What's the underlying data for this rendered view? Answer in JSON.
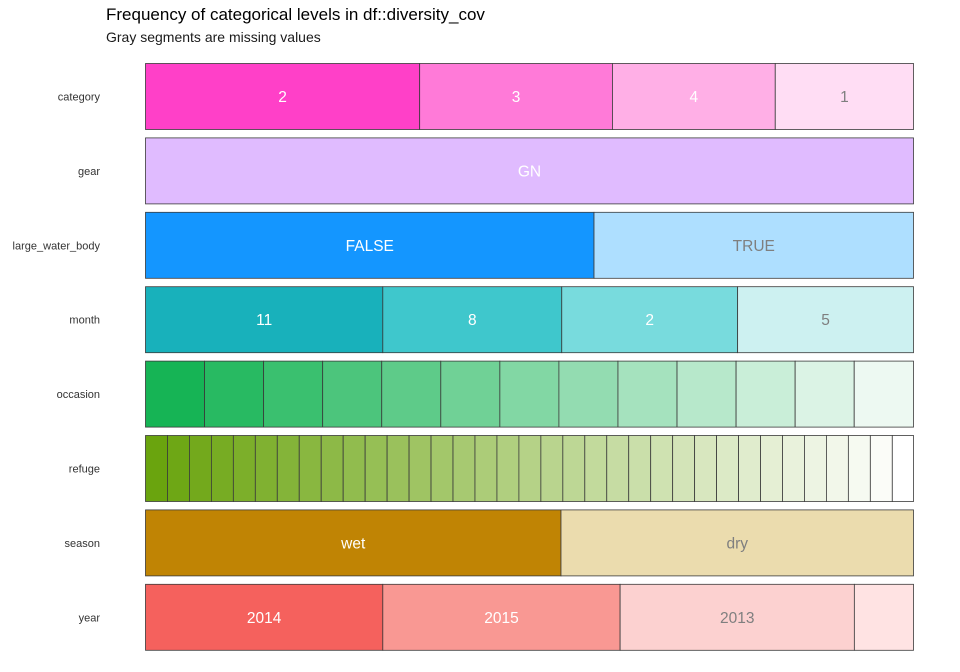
{
  "title": "Frequency of categorical levels in df::diversity_cov",
  "subtitle": "Gray segments are missing values",
  "chart_data": {
    "type": "bar",
    "orientation": "horizontal-stacked-proportion",
    "title": "Frequency of categorical levels in df::diversity_cov",
    "subtitle": "Gray segments are missing values",
    "xlim": [
      0,
      1
    ],
    "grid": false,
    "legend": "none",
    "rows": [
      {
        "name": "category",
        "levels": [
          {
            "label": "2",
            "proportion": 0.357,
            "color": "#FF40C8",
            "text_color": "#FFFFFF"
          },
          {
            "label": "3",
            "proportion": 0.251,
            "color": "#FF7AD8",
            "text_color": "#FFFFFF"
          },
          {
            "label": "4",
            "proportion": 0.212,
            "color": "#FFAFE6",
            "text_color": "#FFFFFF"
          },
          {
            "label": "1",
            "proportion": 0.18,
            "color": "#FFDDF4",
            "text_color": "#7F7F7F"
          }
        ]
      },
      {
        "name": "gear",
        "levels": [
          {
            "label": "GN",
            "proportion": 1.0,
            "color": "#E0BBFF",
            "text_color": "#FFFFFF"
          }
        ]
      },
      {
        "name": "large_water_body",
        "levels": [
          {
            "label": "FALSE",
            "proportion": 0.584,
            "color": "#1496FF",
            "text_color": "#FFFFFF"
          },
          {
            "label": "TRUE",
            "proportion": 0.416,
            "color": "#AEDFFF",
            "text_color": "#7F7F7F"
          }
        ]
      },
      {
        "name": "month",
        "levels": [
          {
            "label": "11",
            "proportion": 0.309,
            "color": "#18B1BB",
            "text_color": "#FFFFFF"
          },
          {
            "label": "8",
            "proportion": 0.233,
            "color": "#3FC7CC",
            "text_color": "#FFFFFF"
          },
          {
            "label": "2",
            "proportion": 0.229,
            "color": "#78DBDD",
            "text_color": "#FFFFFF"
          },
          {
            "label": "5",
            "proportion": 0.229,
            "color": "#CDF1F1",
            "text_color": "#7F7F7F"
          }
        ]
      },
      {
        "name": "occasion",
        "gradient": {
          "from": "#16B455",
          "to": "#EDF9F2"
        },
        "levels": [
          {
            "label": "",
            "proportion": 0.0769
          },
          {
            "label": "",
            "proportion": 0.0769
          },
          {
            "label": "",
            "proportion": 0.0769
          },
          {
            "label": "",
            "proportion": 0.0769
          },
          {
            "label": "",
            "proportion": 0.0769
          },
          {
            "label": "",
            "proportion": 0.0769
          },
          {
            "label": "",
            "proportion": 0.0769
          },
          {
            "label": "",
            "proportion": 0.0769
          },
          {
            "label": "",
            "proportion": 0.0769
          },
          {
            "label": "",
            "proportion": 0.0769
          },
          {
            "label": "",
            "proportion": 0.0769
          },
          {
            "label": "",
            "proportion": 0.0769
          },
          {
            "label": "",
            "proportion": 0.0772
          }
        ]
      },
      {
        "name": "refuge",
        "gradient": {
          "from": "#6AA40E",
          "to": "#FFFFFF"
        },
        "levels": [
          {
            "label": "",
            "proportion": 0.0286
          },
          {
            "label": "",
            "proportion": 0.0286
          },
          {
            "label": "",
            "proportion": 0.0286
          },
          {
            "label": "",
            "proportion": 0.0286
          },
          {
            "label": "",
            "proportion": 0.0286
          },
          {
            "label": "",
            "proportion": 0.0286
          },
          {
            "label": "",
            "proportion": 0.0286
          },
          {
            "label": "",
            "proportion": 0.0286
          },
          {
            "label": "",
            "proportion": 0.0286
          },
          {
            "label": "",
            "proportion": 0.0286
          },
          {
            "label": "",
            "proportion": 0.0286
          },
          {
            "label": "",
            "proportion": 0.0286
          },
          {
            "label": "",
            "proportion": 0.0286
          },
          {
            "label": "",
            "proportion": 0.0286
          },
          {
            "label": "",
            "proportion": 0.0286
          },
          {
            "label": "",
            "proportion": 0.0286
          },
          {
            "label": "",
            "proportion": 0.0286
          },
          {
            "label": "",
            "proportion": 0.0286
          },
          {
            "label": "",
            "proportion": 0.0286
          },
          {
            "label": "",
            "proportion": 0.0286
          },
          {
            "label": "",
            "proportion": 0.0286
          },
          {
            "label": "",
            "proportion": 0.0286
          },
          {
            "label": "",
            "proportion": 0.0286
          },
          {
            "label": "",
            "proportion": 0.0286
          },
          {
            "label": "",
            "proportion": 0.0286
          },
          {
            "label": "",
            "proportion": 0.0286
          },
          {
            "label": "",
            "proportion": 0.0286
          },
          {
            "label": "",
            "proportion": 0.0286
          },
          {
            "label": "",
            "proportion": 0.0286
          },
          {
            "label": "",
            "proportion": 0.0286
          },
          {
            "label": "",
            "proportion": 0.0286
          },
          {
            "label": "",
            "proportion": 0.0286
          },
          {
            "label": "",
            "proportion": 0.0286
          },
          {
            "label": "",
            "proportion": 0.0286
          },
          {
            "label": "",
            "proportion": 0.0276
          }
        ]
      },
      {
        "name": "season",
        "levels": [
          {
            "label": "wet",
            "proportion": 0.541,
            "color": "#C08404",
            "text_color": "#FFFFFF"
          },
          {
            "label": "dry",
            "proportion": 0.459,
            "color": "#EBDCAE",
            "text_color": "#7F7F7F"
          }
        ]
      },
      {
        "name": "year",
        "levels": [
          {
            "label": "2014",
            "proportion": 0.309,
            "color": "#F5615D",
            "text_color": "#FFFFFF"
          },
          {
            "label": "2015",
            "proportion": 0.309,
            "color": "#F99893",
            "text_color": "#FFFFFF"
          },
          {
            "label": "2013",
            "proportion": 0.305,
            "color": "#FCD1D0",
            "text_color": "#7F7F7F"
          },
          {
            "label": "",
            "proportion": 0.077,
            "color": "#FFE3E3",
            "text_color": "#7F7F7F"
          }
        ]
      }
    ]
  }
}
